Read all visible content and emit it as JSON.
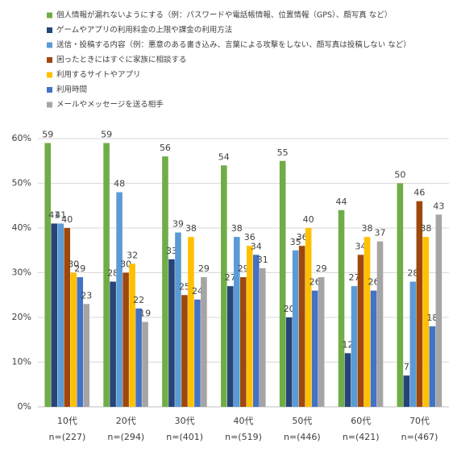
{
  "chart_data": {
    "type": "bar",
    "categories": [
      "10代",
      "20代",
      "30代",
      "40代",
      "50代",
      "60代",
      "70代"
    ],
    "sample_sizes": [
      "n=(227)",
      "n=(294)",
      "n=(401)",
      "n=(519)",
      "n=(446)",
      "n=(421)",
      "n=(467)"
    ],
    "series": [
      {
        "name": "個人情報が漏れないようにする（例：パスワードや電話帳情報、位置情報（GPS）、顔写真 など）",
        "color": "#70ad47",
        "values": [
          59,
          59,
          56,
          54,
          55,
          44,
          50
        ]
      },
      {
        "name": "ゲームやアプリの利用料金の上限や課金の利用方法",
        "color": "#264478",
        "values": [
          41,
          28,
          33,
          27,
          20,
          12,
          7
        ]
      },
      {
        "name": "送信・投稿する内容（例：悪意のある書き込み、言葉による攻撃をしない、顔写真は投稿しない など）",
        "color": "#5b9bd5",
        "values": [
          41,
          48,
          39,
          38,
          35,
          27,
          28
        ]
      },
      {
        "name": "困ったときにはすぐに家族に相談する",
        "color": "#9e480e",
        "values": [
          40,
          30,
          25,
          29,
          36,
          34,
          46
        ]
      },
      {
        "name": "利用するサイトやアプリ",
        "color": "#ffc000",
        "values": [
          30,
          32,
          38,
          36,
          40,
          38,
          38
        ]
      },
      {
        "name": "利用時間",
        "color": "#4472c4",
        "values": [
          29,
          22,
          24,
          34,
          26,
          26,
          18
        ]
      },
      {
        "name": "メールやメッセージを送る相手",
        "color": "#a5a5a5",
        "values": [
          23,
          19,
          29,
          31,
          29,
          37,
          43
        ]
      }
    ],
    "ylim": [
      0,
      60
    ],
    "yticks": [
      {
        "value": 0,
        "label": "0%"
      },
      {
        "value": 10,
        "label": "10%"
      },
      {
        "value": 20,
        "label": "20%"
      },
      {
        "value": 30,
        "label": "30%"
      },
      {
        "value": 40,
        "label": "40%"
      },
      {
        "value": 50,
        "label": "50%"
      },
      {
        "value": 60,
        "label": "60%"
      }
    ],
    "grid": true,
    "legend": "top-left"
  }
}
